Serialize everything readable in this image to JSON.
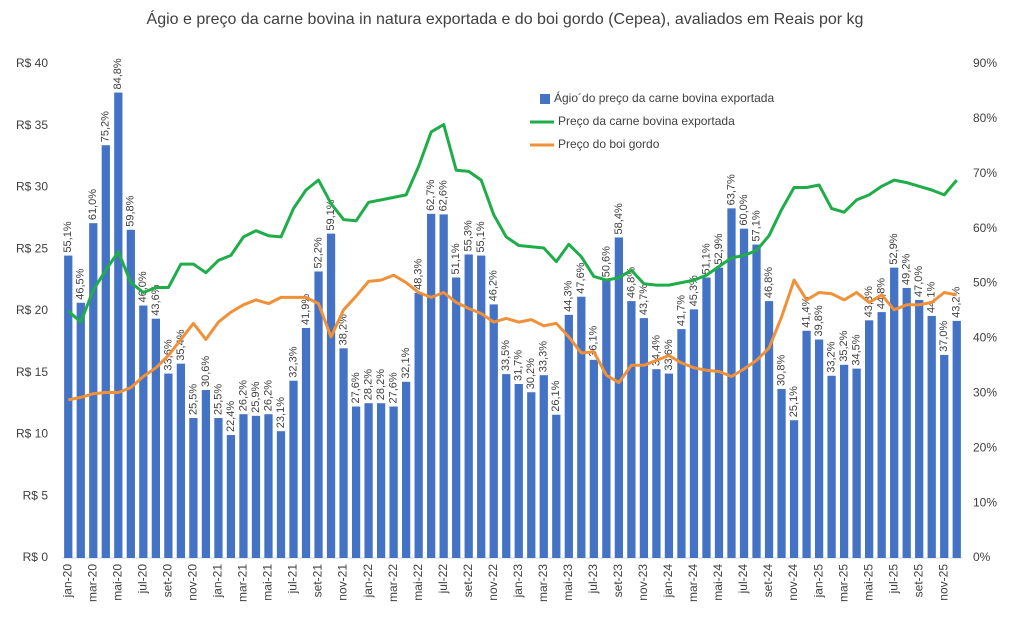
{
  "chart_data": {
    "type": "combo",
    "title": "Ágio e preço da carne bovina in natura exportada e do boi gordo (Cepea), avaliados em Reais por kg",
    "categories": [
      "jan-20",
      null,
      "mar-20",
      null,
      "mai-20",
      null,
      "jul-20",
      null,
      "set-20",
      null,
      "nov-20",
      null,
      "jan-21",
      null,
      "mar-21",
      null,
      "mai-21",
      null,
      "jul-21",
      null,
      "set-21",
      null,
      "nov-21",
      null,
      "jan-22",
      null,
      "mar-22",
      null,
      "mai-22",
      null,
      "jul-22",
      null,
      "set-22",
      null,
      "nov-22",
      null,
      "jan-23",
      null,
      "mar-23",
      null,
      "mai-23",
      null,
      "jul-23",
      null,
      "set-23",
      null,
      "nov-23",
      null,
      "jan-24",
      null,
      "mar-24",
      null,
      "mai-24",
      null,
      "jul-24",
      null,
      "set-24",
      null,
      "nov-24",
      null,
      "jan-25",
      null,
      "mar-25",
      null,
      "mai-25",
      null,
      "jul-25",
      null,
      "set-25",
      null,
      "nov-25",
      null
    ],
    "series": [
      {
        "name": "Ágio´do preço da carne bovina exportada",
        "type": "bar",
        "axis": "y2",
        "color": "#4472c4",
        "values": [
          55.1,
          46.5,
          61.0,
          75.2,
          84.8,
          59.8,
          46.0,
          43.6,
          33.6,
          35.4,
          25.5,
          30.6,
          25.5,
          22.4,
          26.2,
          25.9,
          26.2,
          23.1,
          32.3,
          41.9,
          52.2,
          59.1,
          38.2,
          27.6,
          28.2,
          28.2,
          27.6,
          32.1,
          48.3,
          62.7,
          62.6,
          51.1,
          55.3,
          55.1,
          46.2,
          33.5,
          31.7,
          30.2,
          33.3,
          26.1,
          44.3,
          47.6,
          36.1,
          50.6,
          58.4,
          46.8,
          43.7,
          34.4,
          33.6,
          41.7,
          45.3,
          51.1,
          52.9,
          63.7,
          60.0,
          57.1,
          46.8,
          30.8,
          25.1,
          41.4,
          39.8,
          33.2,
          35.2,
          34.5,
          43.3,
          44.8,
          52.9,
          49.2,
          47.0,
          44.1,
          37.0,
          43.2
        ],
        "value_labels": [
          "55,1%",
          "46,5%",
          "61,0%",
          "75,2%",
          "84,8%",
          "59,8%",
          "46,0%",
          "43,6%",
          "33,6%",
          "35,4%",
          "25,5%",
          "30,6%",
          "25,5%",
          "22,4%",
          "26,2%",
          "25,9%",
          "26,2%",
          "23,1%",
          "32,3%",
          "41,9%",
          "52,2%",
          "59,1%",
          "38,2%",
          "27,6%",
          "28,2%",
          "28,2%",
          "27,6%",
          "32,1%",
          "48,3%",
          "62,7%",
          "62,6%",
          "51,1%",
          "55,3%",
          "55,1%",
          "46,2%",
          "33,5%",
          "31,7%",
          "30,2%",
          "33,3%",
          "26,1%",
          "44,3%",
          "47,6%",
          "36,1%",
          "50,6%",
          "58,4%",
          "46,8%",
          "43,7%",
          "34,4%",
          "33,6%",
          "41,7%",
          "45,3%",
          "51,1%",
          "52,9%",
          "63,7%",
          "60,0%",
          "57,1%",
          "46,8%",
          "30,8%",
          "25,1%",
          "41,4%",
          "39,8%",
          "33,2%",
          "35,2%",
          "34,5%",
          "43,3%",
          "44,8%",
          "52,9%",
          "49,2%",
          "47,0%",
          "44,1%",
          "37,0%",
          "43,2%"
        ]
      },
      {
        "name": "Preço da carne bovina exportada",
        "type": "line",
        "axis": "y",
        "color": "#1fad4a",
        "values": [
          20.0,
          19.1,
          21.7,
          23.3,
          24.8,
          22.3,
          21.5,
          21.9,
          21.9,
          23.8,
          23.8,
          23.1,
          24.1,
          24.5,
          26.0,
          26.5,
          26.1,
          26.0,
          28.3,
          29.8,
          30.6,
          28.7,
          27.4,
          27.3,
          28.8,
          29.0,
          29.2,
          29.4,
          31.7,
          34.5,
          35.1,
          31.4,
          31.3,
          30.6,
          27.8,
          26.0,
          25.3,
          25.2,
          25.1,
          24.0,
          25.4,
          24.4,
          22.8,
          22.5,
          22.7,
          23.3,
          22.2,
          22.1,
          22.1,
          22.3,
          22.5,
          22.9,
          23.6,
          24.3,
          24.5,
          24.9,
          26.1,
          28.2,
          30.0,
          30.0,
          30.2,
          28.3,
          28.0,
          29.0,
          29.4,
          30.1,
          30.6,
          30.4,
          30.1,
          29.8,
          29.4,
          30.6
        ]
      },
      {
        "name": "Preço do boi gordo",
        "type": "line",
        "axis": "y",
        "color": "#f0913a",
        "values": [
          12.8,
          13.0,
          13.3,
          13.4,
          13.4,
          13.8,
          14.7,
          15.4,
          16.4,
          17.7,
          19.0,
          17.7,
          19.1,
          19.9,
          20.5,
          20.9,
          20.6,
          21.1,
          21.1,
          21.1,
          20.6,
          17.9,
          20.1,
          21.2,
          22.4,
          22.5,
          22.9,
          22.3,
          21.5,
          21.1,
          21.5,
          20.7,
          20.2,
          19.8,
          19.1,
          19.4,
          19.1,
          19.3,
          18.8,
          19.0,
          17.9,
          16.6,
          16.7,
          14.8,
          14.2,
          15.6,
          15.6,
          16.0,
          16.4,
          15.8,
          15.4,
          15.2,
          15.1,
          14.7,
          15.3,
          16.0,
          17.0,
          19.5,
          22.5,
          20.9,
          21.5,
          21.4,
          20.9,
          21.5,
          20.7,
          21.3,
          20.1,
          20.5,
          20.5,
          20.7,
          21.5,
          21.3
        ]
      }
    ],
    "ylim": [
      0,
      40
    ],
    "yticks": [
      {
        "value": 0,
        "label": "R$ 0"
      },
      {
        "value": 5,
        "label": "R$ 5"
      },
      {
        "value": 10,
        "label": "R$ 10"
      },
      {
        "value": 15,
        "label": "R$ 15"
      },
      {
        "value": 20,
        "label": "R$ 20"
      },
      {
        "value": 25,
        "label": "R$ 25"
      },
      {
        "value": 30,
        "label": "R$ 30"
      },
      {
        "value": 35,
        "label": "R$ 35"
      },
      {
        "value": 40,
        "label": "R$ 40"
      }
    ],
    "y2lim": [
      0,
      90
    ],
    "y2ticks": [
      {
        "value": 0,
        "label": "0%"
      },
      {
        "value": 10,
        "label": "10%"
      },
      {
        "value": 20,
        "label": "20%"
      },
      {
        "value": 30,
        "label": "30%"
      },
      {
        "value": 40,
        "label": "40%"
      },
      {
        "value": 50,
        "label": "50%"
      },
      {
        "value": 60,
        "label": "60%"
      },
      {
        "value": 70,
        "label": "70%"
      },
      {
        "value": 80,
        "label": "80%"
      },
      {
        "value": 90,
        "label": "90%"
      }
    ],
    "grid": false,
    "legend": "top-right"
  }
}
